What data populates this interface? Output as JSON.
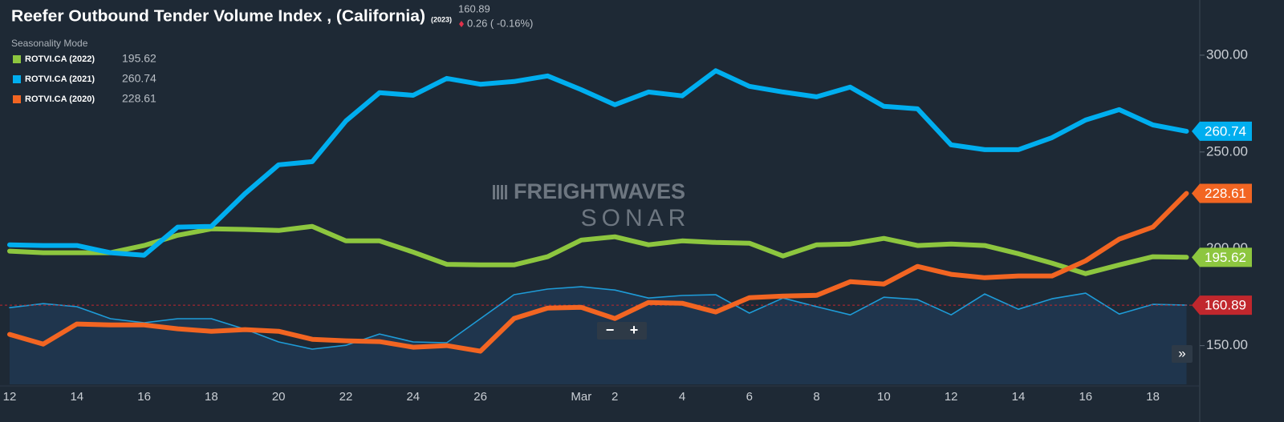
{
  "chart_data": {
    "type": "line",
    "title": "Reefer Outbound Tender Volume Index , (California)",
    "title_suffix": "(2023)",
    "subtitle": "Seasonality Mode",
    "change_label": "0.26 ( -0.16%)",
    "watermark": [
      "FREIGHTWAVES",
      "SONAR"
    ],
    "controls": [
      "−",
      "+",
      "»"
    ],
    "categories": [
      "12",
      null,
      "14",
      null,
      "16",
      null,
      "18",
      null,
      "20",
      null,
      "22",
      null,
      "24",
      null,
      "26",
      null,
      null,
      "Mar",
      "2",
      null,
      "4",
      null,
      "6",
      null,
      "8",
      null,
      "10",
      null,
      "12",
      null,
      "14",
      null,
      "16",
      null,
      "18",
      null
    ],
    "ylim": [
      130,
      328.5
    ],
    "yticks": [
      {
        "value": 150,
        "label": "150.00"
      },
      {
        "value": 200,
        "label": "200.00"
      },
      {
        "value": 250,
        "label": "250.00"
      },
      {
        "value": 300,
        "label": "300.00"
      }
    ],
    "y2lim": [
      120,
      318.5
    ],
    "grid": false,
    "legend": "top-left",
    "series": [
      {
        "name": "ROTVI.CA (2022)",
        "color": "#8dc63f",
        "values": [
          198.8,
          198,
          198,
          198,
          201.7,
          207,
          210.3,
          210,
          209.5,
          211.6,
          204.1,
          204.1,
          198.3,
          192,
          191.7,
          191.7,
          195.9,
          204.5,
          206.2,
          202.1,
          204.1,
          203.3,
          202.9,
          196.3,
          202.1,
          202.5,
          205.4,
          201.7,
          202.5,
          201.7,
          197.5,
          192.6,
          187.2,
          191.7,
          195.9,
          195.62
        ]
      },
      {
        "name": "ROTVI.CA (2021)",
        "color": "#00aeef",
        "values": [
          202.1,
          201.7,
          201.7,
          198,
          196.7,
          211.2,
          211.6,
          228.5,
          243.4,
          245,
          266,
          280.6,
          279.3,
          288,
          285,
          286.4,
          289.3,
          282.2,
          274.4,
          281,
          279,
          292,
          283.9,
          281,
          278.5,
          283.5,
          273.6,
          272.3,
          253.7,
          251.2,
          251.2,
          257.4,
          266.5,
          271.9,
          264,
          260.74
        ]
      },
      {
        "name": "ROTVI.CA (2020)",
        "color": "#f26522",
        "values": [
          155.8,
          150.8,
          161.2,
          160.7,
          160.7,
          158.7,
          157.4,
          158.3,
          157.4,
          153.3,
          152.5,
          152.1,
          149.2,
          150,
          147.1,
          164,
          169.4,
          169.8,
          164,
          172.3,
          171.9,
          167.4,
          174.8,
          175.6,
          176,
          183,
          181.8,
          190.9,
          186.8,
          185.1,
          186,
          186,
          193.8,
          205,
          211.2,
          228.61
        ]
      },
      {
        "color": "#1e9bd7",
        "tag_color": "#c1272d",
        "axis": "y2",
        "area": true,
        "values": [
          159.6,
          161.7,
          160.1,
          153.9,
          151.8,
          153.9,
          153.9,
          148.5,
          141.9,
          138.2,
          140.2,
          146,
          141.9,
          141.5,
          153.9,
          166.3,
          169.2,
          170.4,
          168.7,
          164.6,
          165.9,
          166.3,
          156.8,
          164.6,
          160.1,
          155.9,
          165,
          163.8,
          155.9,
          166.7,
          158.8,
          164.2,
          167.1,
          156.3,
          161.3,
          160.89
        ]
      }
    ]
  }
}
